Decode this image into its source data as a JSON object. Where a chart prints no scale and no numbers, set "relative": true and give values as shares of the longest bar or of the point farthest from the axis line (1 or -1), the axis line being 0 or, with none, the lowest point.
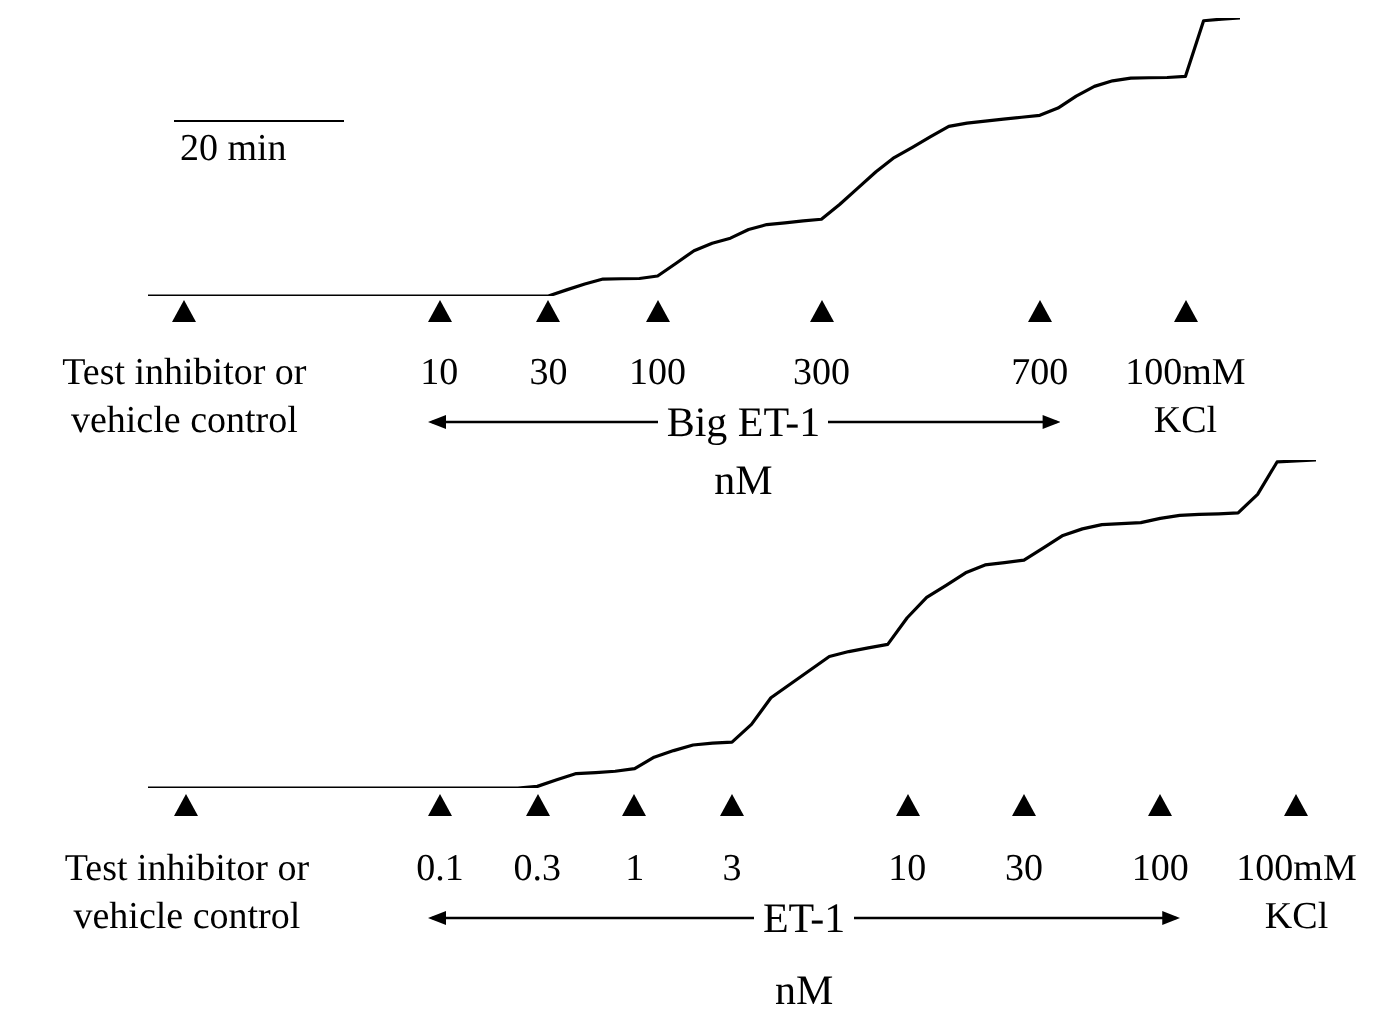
{
  "chart_data": [
    {
      "type": "line",
      "relative": true,
      "color": "#000000",
      "xlabel": "20 min",
      "categories": [
        null,
        null,
        "Test inhibitor or vehicle control",
        null,
        null,
        null,
        null,
        null,
        null,
        null,
        null,
        null,
        null,
        null,
        null,
        null,
        "10",
        null,
        null,
        null,
        null,
        null,
        "30",
        null,
        null,
        null,
        null,
        null,
        "100",
        null,
        null,
        null,
        null,
        null,
        null,
        null,
        null,
        "300",
        null,
        null,
        null,
        null,
        null,
        null,
        null,
        null,
        null,
        null,
        null,
        "700",
        null,
        null,
        null,
        null,
        null,
        null,
        null,
        "100mM KCl",
        null,
        null,
        null
      ],
      "values": [
        0,
        0,
        0,
        0,
        0,
        0,
        0,
        0,
        0,
        0,
        0,
        0,
        0,
        0,
        0,
        0,
        0,
        0,
        0,
        0,
        0,
        0,
        0,
        0.022,
        0.043,
        0.061,
        0.062,
        0.063,
        0.072,
        0.117,
        0.163,
        0.19,
        0.208,
        0.239,
        0.257,
        0.263,
        0.27,
        0.276,
        0.329,
        0.388,
        0.447,
        0.498,
        0.535,
        0.573,
        0.61,
        0.622,
        0.629,
        0.636,
        0.643,
        0.65,
        0.676,
        0.719,
        0.754,
        0.774,
        0.784,
        0.785,
        0.786,
        0.79,
        0.99,
        0.996,
        1
      ],
      "annotations": [
        "Big ET-1",
        "nM"
      ]
    },
    {
      "type": "line",
      "relative": true,
      "color": "#000000",
      "categories": [
        null,
        null,
        "Test inhibitor or vehicle control",
        null,
        null,
        null,
        null,
        null,
        null,
        null,
        null,
        null,
        null,
        null,
        null,
        "0.1",
        null,
        null,
        null,
        null,
        "0.3",
        null,
        null,
        null,
        null,
        "1",
        null,
        null,
        null,
        null,
        "3",
        null,
        null,
        null,
        null,
        null,
        null,
        null,
        null,
        "10",
        null,
        null,
        null,
        null,
        null,
        "30",
        null,
        null,
        null,
        null,
        null,
        null,
        "100",
        null,
        null,
        null,
        null,
        null,
        null,
        "100mM KCl",
        null
      ],
      "values": [
        0,
        0,
        0,
        0,
        0,
        0,
        0,
        0,
        0,
        0,
        0,
        0,
        0,
        0,
        0,
        0,
        0,
        0,
        0,
        0,
        0.005,
        0.025,
        0.044,
        0.047,
        0.051,
        0.059,
        0.094,
        0.114,
        0.131,
        0.137,
        0.14,
        0.194,
        0.275,
        0.317,
        0.359,
        0.401,
        0.416,
        0.427,
        0.438,
        0.519,
        0.581,
        0.618,
        0.656,
        0.68,
        0.687,
        0.695,
        0.732,
        0.77,
        0.79,
        0.803,
        0.806,
        0.809,
        0.822,
        0.831,
        0.834,
        0.836,
        0.839,
        0.895,
        0.994,
        0.997,
        1
      ],
      "annotations": [
        "ET-1",
        "nM"
      ]
    }
  ]
}
